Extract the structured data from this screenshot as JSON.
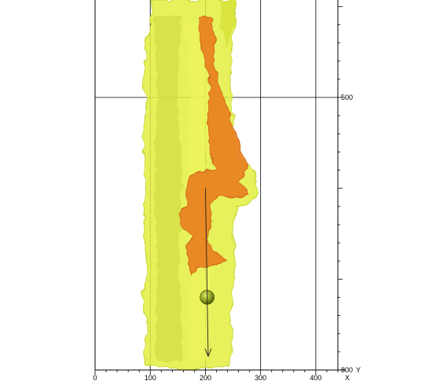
{
  "chart_data": {
    "type": "volume-render",
    "x_axis": {
      "label": "X",
      "ticks": [
        0,
        100,
        200,
        300,
        400
      ],
      "range": [
        0,
        440
      ]
    },
    "y_axis": {
      "label": "Y",
      "ticks": [
        500,
        800
      ],
      "range": [
        300,
        800
      ]
    },
    "grid": true,
    "colors": {
      "outer_surface": "#e2ee3e",
      "outer_surface_edge": "#c6d630",
      "inner_surface": "#e8801c",
      "inner_surface_edge": "#d2691a",
      "sphere": "#8fa01c",
      "grid": "#000000"
    },
    "marker": {
      "type": "sphere",
      "x": 203,
      "y": 720
    },
    "needle_line": {
      "x1": 200,
      "y1": 600,
      "x2": 205,
      "y2": 785
    }
  }
}
